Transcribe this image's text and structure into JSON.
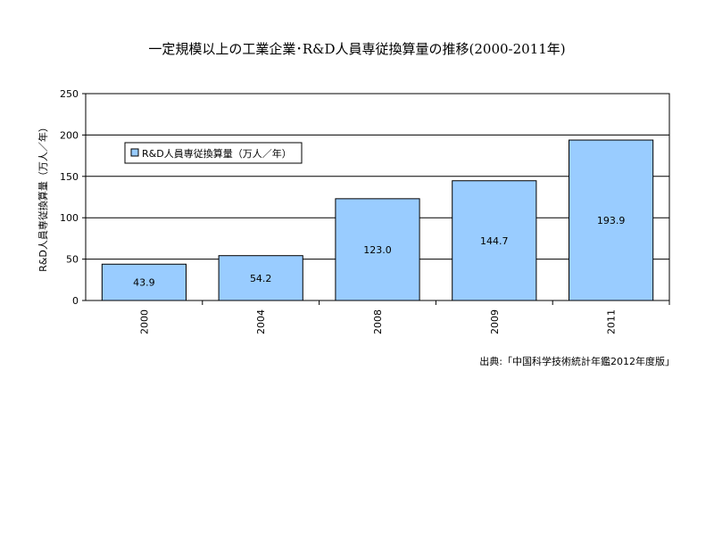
{
  "chart_data": {
    "type": "bar",
    "title": "一定規模以上の工業企業･R&D人員専従換算量の推移(2000-2011年)",
    "ylabel": "R&D人員専従換算量（万人／年）",
    "xlabel": "",
    "categories": [
      "2000",
      "2004",
      "2008",
      "2009",
      "2011"
    ],
    "series": [
      {
        "name": "R&D人員専従換算量（万人／年）",
        "values": [
          43.9,
          54.2,
          123.0,
          144.7,
          193.9
        ],
        "color": "#99ccff"
      }
    ],
    "data_labels": [
      "43.9",
      "54.2",
      "123.0",
      "144.7",
      "193.9"
    ],
    "ylim": [
      0,
      250
    ],
    "yticks": [
      0,
      50,
      100,
      150,
      200,
      250
    ],
    "grid": true,
    "legend_position": "top-left inside plot"
  },
  "source": "出典:「中国科学技術統計年鑑2012年度版」"
}
